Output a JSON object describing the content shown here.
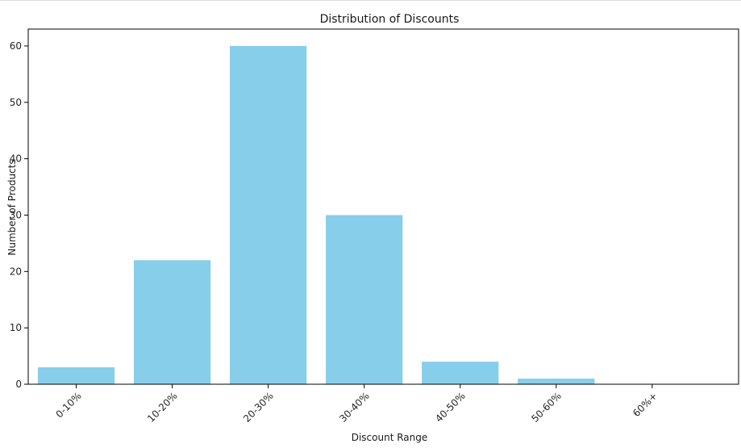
{
  "chart_data": {
    "type": "bar",
    "title": "Distribution of Discounts",
    "xlabel": "Discount Range",
    "ylabel": "Number of Products",
    "categories": [
      "0-10%",
      "10-20%",
      "20-30%",
      "30-40%",
      "40-50%",
      "50-60%",
      "60%+"
    ],
    "values": [
      3,
      22,
      60,
      30,
      4,
      1,
      0
    ],
    "ylim": [
      0,
      63
    ],
    "yticks": [
      0,
      10,
      20,
      30,
      40,
      50,
      60
    ],
    "x_tick_rotation_deg": 45,
    "grid": false,
    "legend": "none",
    "bar_color": "#87CEEB",
    "edge_color": "#000000"
  }
}
